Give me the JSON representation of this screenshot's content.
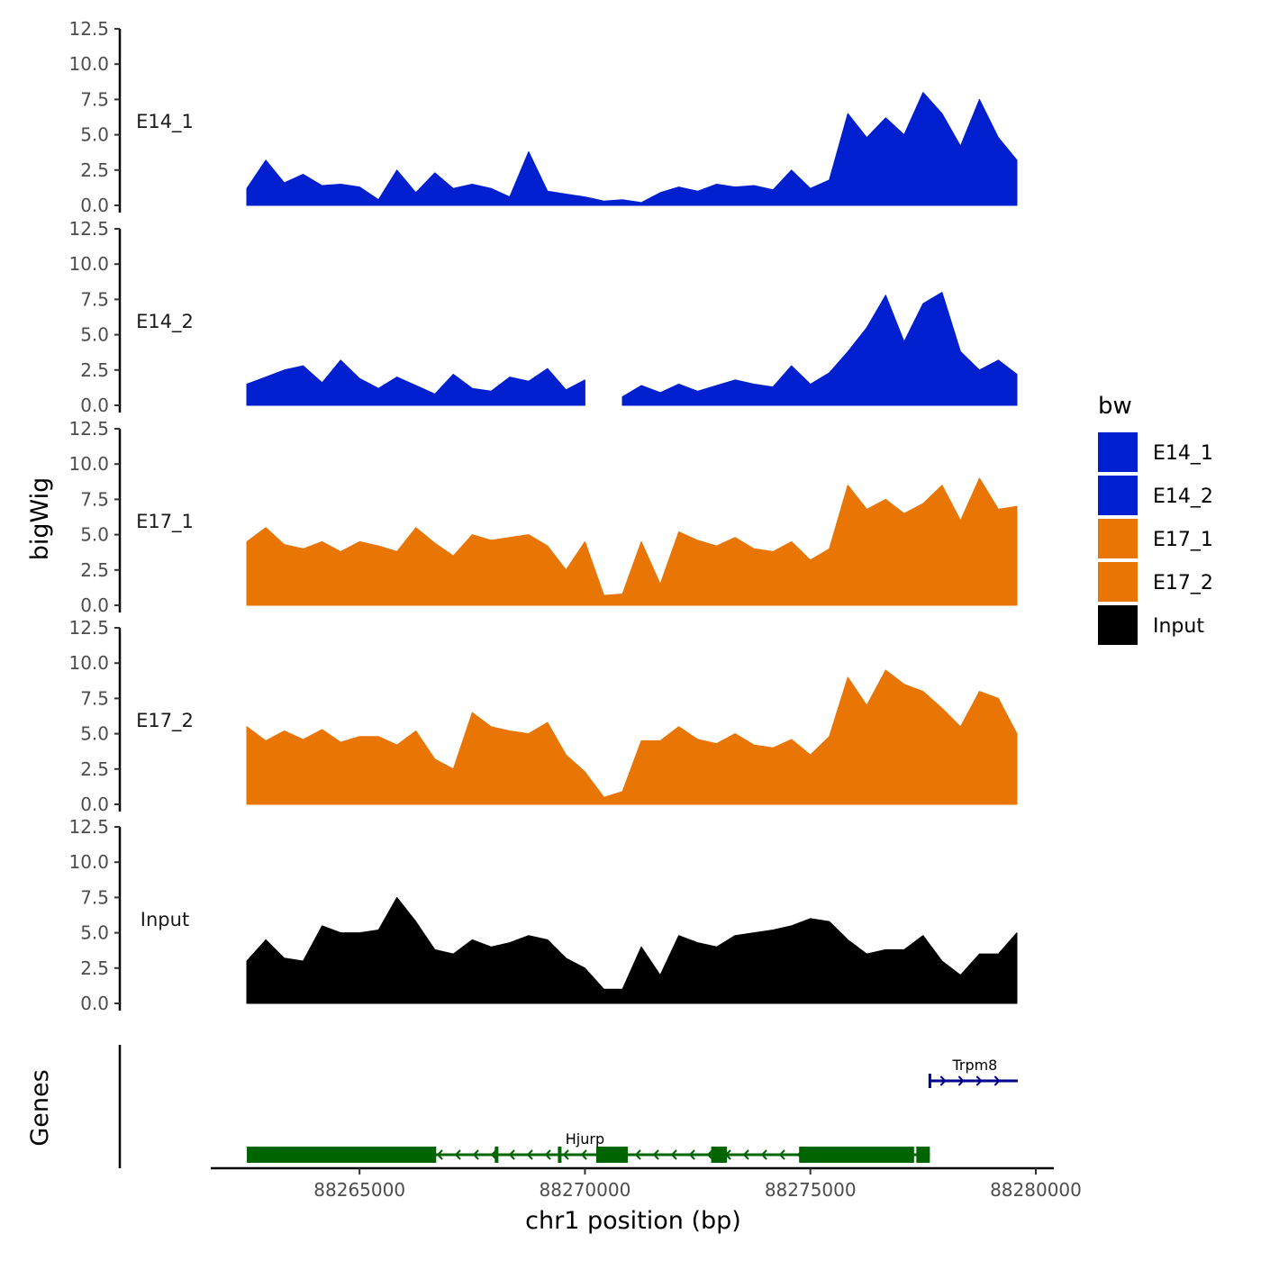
{
  "chart_data": {
    "type": "area",
    "title": "",
    "xlabel": "chr1 position (bp)",
    "ylabel": "bigWig",
    "gene_track_label": "Genes",
    "xlim": [
      88261700,
      88280400
    ],
    "ylim": [
      0,
      12.5
    ],
    "x_ticks": [
      88265000,
      88270000,
      88275000,
      88280000
    ],
    "x_tick_labels": [
      "88265000",
      "88270000",
      "88275000",
      "88280000"
    ],
    "y_ticks": [
      0,
      2.5,
      5,
      7.5,
      10,
      12.5
    ],
    "y_tick_labels": [
      "0.0",
      "2.5",
      "5.0",
      "7.5",
      "10.0",
      "12.5"
    ],
    "legend": {
      "title": "bw",
      "placement": "right",
      "entries": [
        {
          "label": "E14_1",
          "color": "#0020CF"
        },
        {
          "label": "E14_2",
          "color": "#0020CF"
        },
        {
          "label": "E17_1",
          "color": "#E87504"
        },
        {
          "label": "E17_2",
          "color": "#E87504"
        },
        {
          "label": "Input",
          "color": "#000000"
        }
      ]
    },
    "x": [
      88262500,
      88262920,
      88263330,
      88263750,
      88264170,
      88264580,
      88265000,
      88265420,
      88265830,
      88266250,
      88266670,
      88267080,
      88267500,
      88267920,
      88268330,
      88268750,
      88269170,
      88269580,
      88270000,
      88270420,
      88270830,
      88271250,
      88271670,
      88272080,
      88272500,
      88272920,
      88273330,
      88273750,
      88274170,
      88274580,
      88275000,
      88275420,
      88275830,
      88276250,
      88276670,
      88277080,
      88277500,
      88277920,
      88278330,
      88278750,
      88279170,
      88279580
    ],
    "series": [
      {
        "name": "E14_1",
        "color": "#0020CF",
        "values": [
          1.2,
          3.2,
          1.6,
          2.2,
          1.4,
          1.5,
          1.3,
          0.4,
          2.5,
          0.9,
          2.3,
          1.2,
          1.5,
          1.2,
          0.6,
          3.8,
          1.0,
          0.8,
          0.6,
          0.3,
          0.4,
          0.2,
          0.9,
          1.3,
          1.0,
          1.5,
          1.3,
          1.4,
          1.1,
          2.5,
          1.2,
          1.8,
          6.5,
          4.8,
          6.2,
          5.0,
          8.0,
          6.5,
          4.2,
          7.5,
          4.8,
          3.2
        ]
      },
      {
        "name": "E14_2",
        "color": "#0020CF",
        "values": [
          1.5,
          2.0,
          2.5,
          2.8,
          1.6,
          3.2,
          1.9,
          1.2,
          2.0,
          1.4,
          0.8,
          2.2,
          1.2,
          1.0,
          2.0,
          1.7,
          2.6,
          1.1,
          1.8,
          null,
          0.6,
          1.4,
          0.9,
          1.5,
          1.0,
          1.4,
          1.8,
          1.5,
          1.3,
          2.8,
          1.5,
          2.3,
          3.8,
          5.5,
          7.8,
          4.5,
          7.2,
          8.0,
          3.8,
          2.5,
          3.2,
          2.2
        ]
      },
      {
        "name": "E17_1",
        "color": "#E87504",
        "values": [
          4.5,
          5.5,
          4.3,
          4.0,
          4.5,
          3.8,
          4.5,
          4.2,
          3.8,
          5.5,
          4.4,
          3.5,
          5.0,
          4.6,
          4.8,
          5.0,
          4.2,
          2.5,
          4.5,
          0.7,
          0.8,
          4.5,
          1.5,
          5.2,
          4.6,
          4.2,
          4.8,
          4.0,
          3.8,
          4.5,
          3.2,
          4.0,
          8.5,
          6.8,
          7.5,
          6.5,
          7.2,
          8.5,
          6.0,
          9.0,
          6.8,
          7.0
        ]
      },
      {
        "name": "E17_2",
        "color": "#E87504",
        "values": [
          5.5,
          4.5,
          5.2,
          4.6,
          5.3,
          4.4,
          4.8,
          4.8,
          4.2,
          5.2,
          3.2,
          2.5,
          6.5,
          5.5,
          5.2,
          5.0,
          5.8,
          3.5,
          2.3,
          0.5,
          0.9,
          4.5,
          4.5,
          5.5,
          4.6,
          4.3,
          5.0,
          4.2,
          4.0,
          4.6,
          3.5,
          4.8,
          9.0,
          7.0,
          9.5,
          8.5,
          8.0,
          6.8,
          5.5,
          8.0,
          7.5,
          5.0
        ]
      },
      {
        "name": "Input",
        "color": "#000000",
        "values": [
          3.0,
          4.5,
          3.2,
          3.0,
          5.5,
          5.0,
          5.0,
          5.2,
          7.5,
          5.8,
          3.8,
          3.5,
          4.5,
          4.0,
          4.3,
          4.8,
          4.5,
          3.2,
          2.5,
          1.0,
          1.0,
          4.0,
          2.0,
          4.8,
          4.3,
          4.0,
          4.8,
          5.0,
          5.2,
          5.5,
          6.0,
          5.8,
          4.5,
          3.5,
          3.8,
          3.8,
          4.8,
          3.0,
          2.0,
          3.5,
          3.5,
          5.0
        ]
      }
    ],
    "genes": [
      {
        "name": "Hjurp",
        "start": 88262500,
        "end": 88277650,
        "strand": "-",
        "color": "#006400",
        "exons": [
          [
            88262500,
            88266700
          ],
          [
            88268000,
            88268080
          ],
          [
            88269400,
            88269480
          ],
          [
            88270250,
            88270950
          ],
          [
            88272800,
            88273150
          ],
          [
            88274750,
            88277300
          ],
          [
            88277350,
            88277650
          ]
        ]
      },
      {
        "name": "Trpm8",
        "start": 88277650,
        "end": 88279600,
        "strand": "+",
        "color": "#00008B",
        "exons": []
      }
    ]
  }
}
